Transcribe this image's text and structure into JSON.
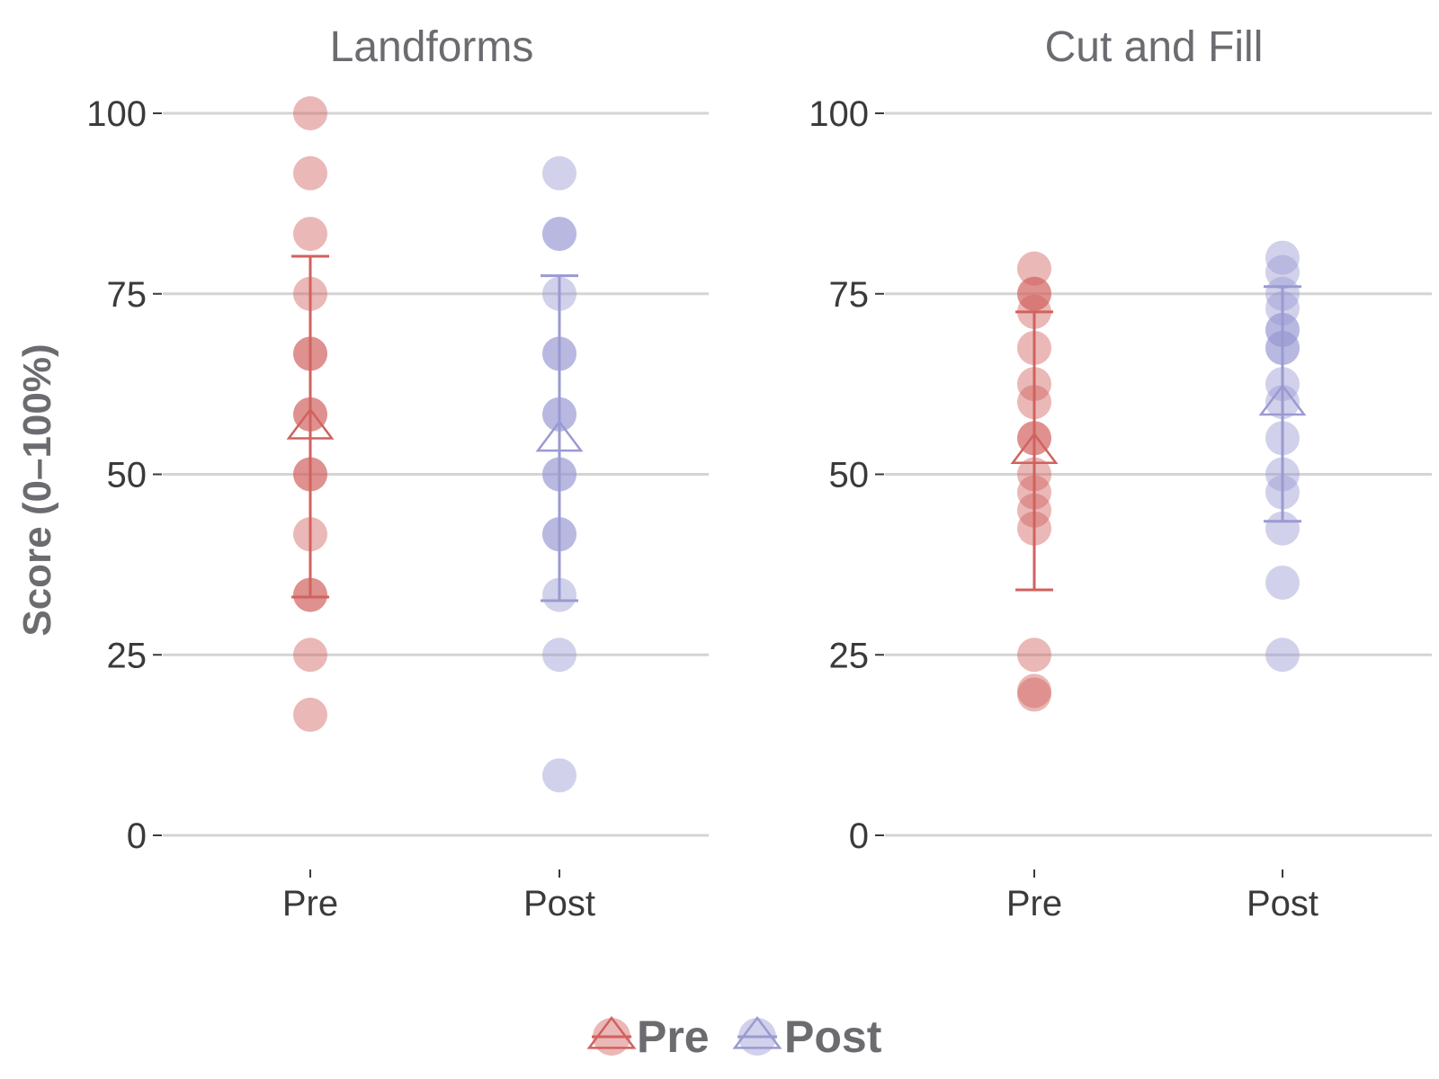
{
  "chart_data": {
    "type": "scatter",
    "ylabel": "Score (0–100%)",
    "ylim": [
      0,
      100
    ],
    "yticks": [
      "0",
      "25",
      "50",
      "75",
      "100"
    ],
    "categories": [
      "Pre",
      "Post"
    ],
    "grid": true,
    "legend_position": "bottom",
    "colors": {
      "Pre": "#d0625e",
      "Post": "#9a9ad2"
    },
    "legend": [
      {
        "name": "Pre",
        "color": "#d0625e"
      },
      {
        "name": "Post",
        "color": "#9a9ad2"
      }
    ],
    "panels": [
      {
        "title": "Landforms",
        "series": [
          {
            "name": "Pre",
            "points": [
              100,
              91.7,
              83.3,
              75,
              66.7,
              66.7,
              58.3,
              58.3,
              50,
              50,
              41.7,
              33.3,
              33.3,
              25,
              16.7
            ],
            "mean": 56.7,
            "error_low": 33.0,
            "error_high": 80.2
          },
          {
            "name": "Post",
            "points": [
              91.7,
              83.3,
              83.3,
              75,
              66.7,
              66.7,
              58.3,
              58.3,
              50,
              50,
              41.7,
              41.7,
              33.3,
              25,
              8.3
            ],
            "mean": 55.0,
            "error_low": 32.5,
            "error_high": 77.5
          }
        ]
      },
      {
        "title": "Cut and Fill",
        "series": [
          {
            "name": "Pre",
            "points": [
              78.5,
              75,
              75,
              72.5,
              67.5,
              62.5,
              60,
              55,
              55,
              50,
              47.5,
              45,
              42.5,
              25,
              20,
              19.5
            ],
            "mean": 53.3,
            "error_low": 34.0,
            "error_high": 72.5
          },
          {
            "name": "Post",
            "points": [
              80,
              78,
              75,
              73,
              70,
              70,
              67.5,
              67.5,
              62.5,
              60,
              55,
              50,
              47.5,
              42.5,
              35,
              25
            ],
            "mean": 60.0,
            "error_low": 43.5,
            "error_high": 76.0
          }
        ]
      }
    ]
  }
}
